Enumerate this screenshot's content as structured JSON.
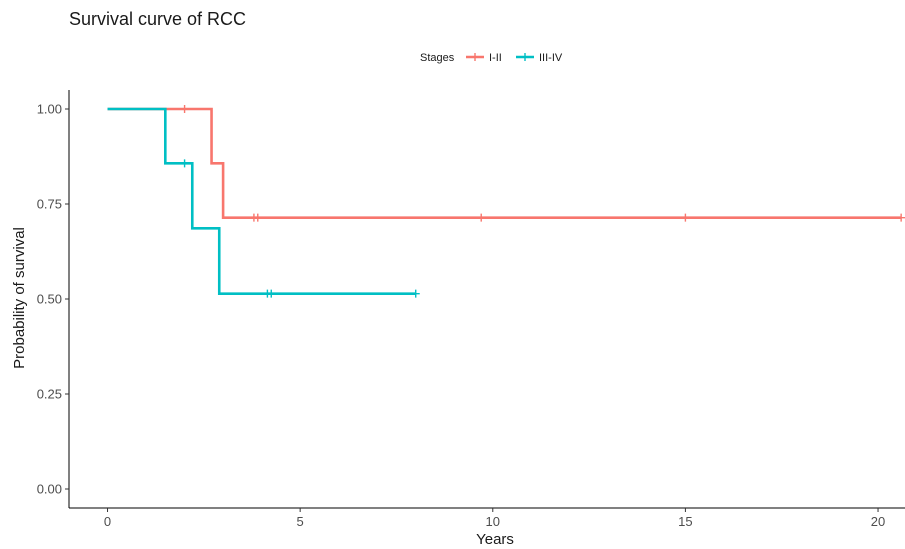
{
  "chart_data": {
    "type": "line",
    "title": "Survival curve of RCC",
    "xlabel": "Years",
    "ylabel": "Probability of survival",
    "xlim": [
      -1,
      20.7
    ],
    "ylim": [
      -0.05,
      1.05
    ],
    "xticks": [
      0,
      5,
      10,
      15,
      20
    ],
    "xtick_labels": [
      "0",
      "5",
      "10",
      "15",
      "20"
    ],
    "yticks": [
      0,
      0.25,
      0.5,
      0.75,
      1.0
    ],
    "ytick_labels": [
      "0.00",
      "0.25",
      "0.50",
      "0.75",
      "1.00"
    ],
    "grid": false,
    "legend": {
      "title": "Stages",
      "placement": "top"
    },
    "series": [
      {
        "name": "I-II",
        "color": "#F8766D",
        "step_x": [
          0,
          2.7,
          3.0,
          20.6
        ],
        "step_y": [
          1.0,
          0.857,
          0.714,
          0.714
        ],
        "censor_x": [
          2.0,
          3.8,
          3.9,
          9.7,
          15.0,
          20.6
        ],
        "censor_y": [
          1.0,
          0.714,
          0.714,
          0.714,
          0.714,
          0.714
        ]
      },
      {
        "name": "III-IV",
        "color": "#00BFC4",
        "step_x": [
          0,
          1.5,
          2.2,
          2.9,
          8.0
        ],
        "step_y": [
          1.0,
          0.857,
          0.686,
          0.514,
          0.514
        ],
        "censor_x": [
          2.0,
          4.15,
          4.25,
          8.0
        ],
        "censor_y": [
          0.857,
          0.514,
          0.514,
          0.514
        ]
      }
    ]
  }
}
